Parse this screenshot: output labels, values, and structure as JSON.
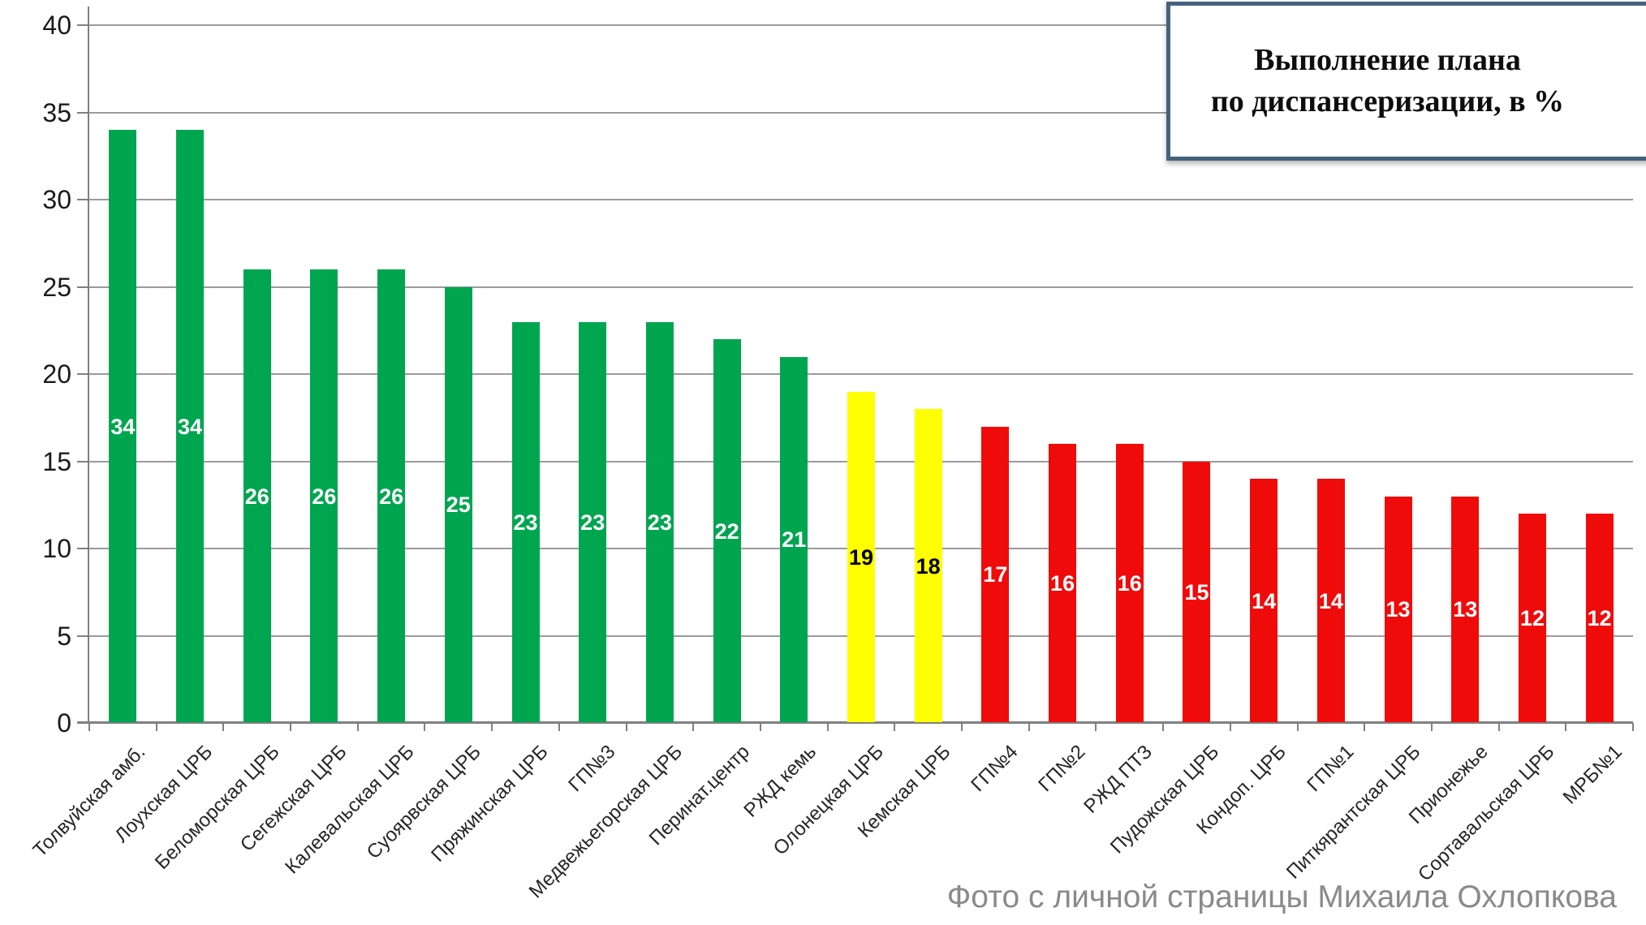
{
  "title": {
    "line1": "Выполнение плана",
    "line2": "по диспансеризации, в %"
  },
  "caption": "Фото с личной страницы Михаила Охлопкова",
  "colors": {
    "green": "#00A550",
    "yellow": "#FFFF00",
    "red": "#F00B0B",
    "grid": "#9B9B9B",
    "axis": "#808080",
    "title_border": "#44627E",
    "caption_text": "#8A8A8A",
    "label_on_green_red": "#FFFFFF",
    "label_on_yellow": "#000000"
  },
  "y_axis": {
    "ticks": [
      0,
      5,
      10,
      15,
      20,
      25,
      30,
      35,
      40
    ]
  },
  "chart_data": {
    "type": "bar",
    "title": "Выполнение плана по диспансеризации, в %",
    "categories": [
      "Толвуйская амб.",
      "Лоухская ЦРБ",
      "Беломорская ЦРБ",
      "Сегежская ЦРБ",
      "Калевальская ЦРБ",
      "Суоярвская ЦРБ",
      "Пряжинская ЦРБ",
      "ГП№3",
      "Медвежьегорская ЦРБ",
      "Перинат.центр",
      "РЖД кемь",
      "Олонецкая ЦРБ",
      "Кемская ЦРБ",
      "ГП№4",
      "ГП№2",
      "РЖД ПТЗ",
      "Пудожская ЦРБ",
      "Кондоп. ЦРБ",
      "ГП№1",
      "Питкярантская ЦРБ",
      "Прионежье",
      "Сортавальская ЦРБ",
      "МРБ№1"
    ],
    "values": [
      34,
      34,
      26,
      26,
      26,
      25,
      23,
      23,
      23,
      22,
      21,
      19,
      18,
      17,
      16,
      16,
      15,
      14,
      14,
      13,
      13,
      12,
      12
    ],
    "bar_colors": [
      "green",
      "green",
      "green",
      "green",
      "green",
      "green",
      "green",
      "green",
      "green",
      "green",
      "green",
      "yellow",
      "yellow",
      "red",
      "red",
      "red",
      "red",
      "red",
      "red",
      "red",
      "red",
      "red",
      "red"
    ],
    "xlabel": "",
    "ylabel": "",
    "ylim": [
      0,
      40
    ],
    "ytick_step": 5,
    "grid": true,
    "legend": false,
    "value_labels": "inside-center"
  }
}
